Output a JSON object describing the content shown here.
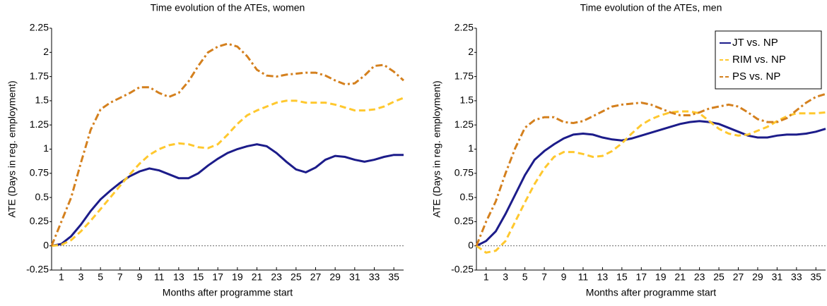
{
  "chart_data": [
    {
      "type": "line",
      "title": "Time evolution of the ATEs, women",
      "x_label": "Months after programme start",
      "y_label": "ATE (Days in reg. employment)",
      "x": [
        0,
        1,
        2,
        3,
        4,
        5,
        6,
        7,
        8,
        9,
        10,
        11,
        12,
        13,
        14,
        15,
        16,
        17,
        18,
        19,
        20,
        21,
        22,
        23,
        24,
        25,
        26,
        27,
        28,
        29,
        30,
        31,
        32,
        33,
        34,
        35,
        36
      ],
      "xlim": [
        0,
        36
      ],
      "xticks": [
        1,
        3,
        5,
        7,
        9,
        11,
        13,
        15,
        17,
        19,
        21,
        23,
        25,
        27,
        29,
        31,
        33,
        35
      ],
      "ylim": [
        -0.25,
        2.25
      ],
      "yticks": [
        -0.25,
        0,
        0.25,
        0.5,
        0.75,
        1,
        1.25,
        1.5,
        1.75,
        2,
        2.25
      ],
      "zero_line": true,
      "series": [
        {
          "name": "JT vs. NP",
          "color": "#1c1c8a",
          "dash": "solid",
          "values": [
            0,
            0.02,
            0.1,
            0.22,
            0.36,
            0.48,
            0.57,
            0.65,
            0.72,
            0.77,
            0.8,
            0.78,
            0.74,
            0.7,
            0.7,
            0.75,
            0.83,
            0.9,
            0.96,
            1.0,
            1.03,
            1.05,
            1.03,
            0.96,
            0.87,
            0.79,
            0.76,
            0.81,
            0.89,
            0.93,
            0.92,
            0.89,
            0.87,
            0.89,
            0.92,
            0.94,
            0.94
          ]
        },
        {
          "name": "RIM vs. NP",
          "color": "#ffc82e",
          "dash": "dashed",
          "values": [
            0,
            0.01,
            0.06,
            0.15,
            0.26,
            0.38,
            0.5,
            0.62,
            0.74,
            0.85,
            0.94,
            1.0,
            1.04,
            1.06,
            1.05,
            1.02,
            1.01,
            1.05,
            1.15,
            1.26,
            1.35,
            1.4,
            1.44,
            1.48,
            1.5,
            1.5,
            1.48,
            1.48,
            1.48,
            1.46,
            1.43,
            1.4,
            1.4,
            1.41,
            1.44,
            1.49,
            1.53
          ]
        },
        {
          "name": "PS vs. NP",
          "color": "#d4801e",
          "dash": "dashdot",
          "values": [
            0,
            0.25,
            0.5,
            0.86,
            1.2,
            1.41,
            1.48,
            1.53,
            1.58,
            1.64,
            1.64,
            1.58,
            1.54,
            1.58,
            1.7,
            1.86,
            2.0,
            2.06,
            2.09,
            2.06,
            1.96,
            1.82,
            1.76,
            1.75,
            1.77,
            1.78,
            1.79,
            1.79,
            1.76,
            1.71,
            1.67,
            1.68,
            1.76,
            1.86,
            1.87,
            1.8,
            1.71
          ]
        }
      ]
    },
    {
      "type": "line",
      "title": "Time evolution of the ATEs, men",
      "x_label": "Months after programme start",
      "y_label": "ATE (Days in reg. employment)",
      "x": [
        0,
        1,
        2,
        3,
        4,
        5,
        6,
        7,
        8,
        9,
        10,
        11,
        12,
        13,
        14,
        15,
        16,
        17,
        18,
        19,
        20,
        21,
        22,
        23,
        24,
        25,
        26,
        27,
        28,
        29,
        30,
        31,
        32,
        33,
        34,
        35,
        36
      ],
      "xlim": [
        0,
        36
      ],
      "xticks": [
        1,
        3,
        5,
        7,
        9,
        11,
        13,
        15,
        17,
        19,
        21,
        23,
        25,
        27,
        29,
        31,
        33,
        35
      ],
      "ylim": [
        -0.25,
        2.25
      ],
      "yticks": [
        -0.25,
        0,
        0.25,
        0.5,
        0.75,
        1,
        1.25,
        1.5,
        1.75,
        2,
        2.25
      ],
      "zero_line": true,
      "legend": "upper right",
      "series": [
        {
          "name": "JT vs. NP",
          "color": "#1c1c8a",
          "dash": "solid",
          "values": [
            0,
            0.05,
            0.15,
            0.33,
            0.53,
            0.73,
            0.89,
            0.98,
            1.05,
            1.11,
            1.15,
            1.16,
            1.15,
            1.12,
            1.1,
            1.09,
            1.11,
            1.14,
            1.17,
            1.2,
            1.23,
            1.26,
            1.28,
            1.29,
            1.28,
            1.26,
            1.22,
            1.18,
            1.14,
            1.12,
            1.12,
            1.14,
            1.15,
            1.15,
            1.16,
            1.18,
            1.21
          ]
        },
        {
          "name": "RIM vs. NP",
          "color": "#ffc82e",
          "dash": "dashed",
          "values": [
            0,
            -0.07,
            -0.05,
            0.05,
            0.25,
            0.45,
            0.64,
            0.8,
            0.92,
            0.97,
            0.97,
            0.95,
            0.92,
            0.93,
            0.98,
            1.06,
            1.16,
            1.25,
            1.31,
            1.35,
            1.38,
            1.39,
            1.39,
            1.37,
            1.29,
            1.21,
            1.16,
            1.14,
            1.15,
            1.19,
            1.23,
            1.29,
            1.34,
            1.37,
            1.37,
            1.37,
            1.38
          ]
        },
        {
          "name": "PS vs. NP",
          "color": "#d4801e",
          "dash": "dashdot",
          "values": [
            0,
            0.25,
            0.46,
            0.75,
            1.01,
            1.22,
            1.3,
            1.33,
            1.33,
            1.28,
            1.27,
            1.29,
            1.34,
            1.39,
            1.44,
            1.46,
            1.47,
            1.48,
            1.46,
            1.42,
            1.38,
            1.35,
            1.35,
            1.38,
            1.42,
            1.44,
            1.46,
            1.44,
            1.38,
            1.31,
            1.28,
            1.28,
            1.32,
            1.4,
            1.48,
            1.54,
            1.57
          ]
        }
      ]
    }
  ]
}
